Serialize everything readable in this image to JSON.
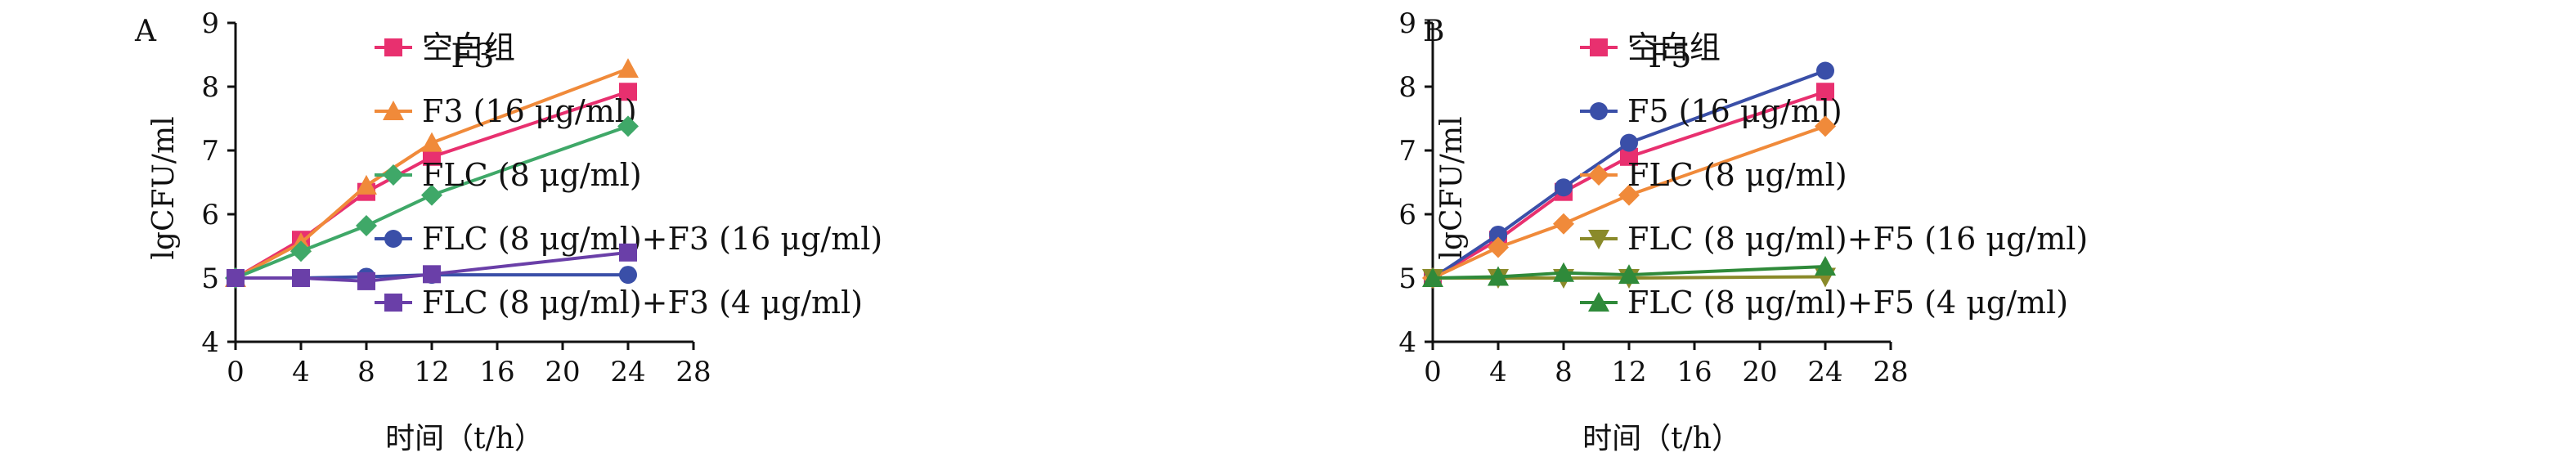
{
  "chart_data": [
    {
      "type": "line",
      "panel_label": "A",
      "title": "F3",
      "xlabel": "时间（t/h）",
      "ylabel": "lgCFU/ml",
      "xlim": [
        0,
        28
      ],
      "ylim": [
        4,
        9
      ],
      "xticks": [
        0,
        4,
        8,
        12,
        16,
        20,
        24,
        28
      ],
      "yticks": [
        4,
        5,
        6,
        7,
        8,
        9
      ],
      "grid": false,
      "legend_position": "right",
      "x": [
        0,
        4,
        8,
        12,
        24
      ],
      "series": [
        {
          "name": "空白组",
          "color": "#e8306f",
          "marker": "square",
          "values": [
            5.0,
            5.6,
            6.35,
            6.9,
            7.92
          ]
        },
        {
          "name": "F3 (16 μg/ml)",
          "color": "#f08a3a",
          "marker": "triangle-up",
          "values": [
            5.0,
            5.55,
            6.45,
            7.12,
            8.28
          ]
        },
        {
          "name": "FLC (8 μg/ml)",
          "color": "#3fa868",
          "marker": "diamond",
          "values": [
            5.0,
            5.42,
            5.82,
            6.3,
            7.38
          ]
        },
        {
          "name": "FLC (8 μg/ml)+F3 (16 μg/ml)",
          "color": "#3a4fa8",
          "marker": "circle",
          "values": [
            5.0,
            5.0,
            5.02,
            5.05,
            5.05
          ]
        },
        {
          "name": "FLC (8 μg/ml)+F3 (4 μg/ml)",
          "color": "#6a3fa8",
          "marker": "square",
          "values": [
            5.0,
            5.0,
            4.95,
            5.06,
            5.4
          ]
        }
      ]
    },
    {
      "type": "line",
      "panel_label": "B",
      "title": "F5",
      "xlabel": "时间（t/h）",
      "ylabel": "lgCFU/ml",
      "xlim": [
        0,
        28
      ],
      "ylim": [
        4,
        9
      ],
      "xticks": [
        0,
        4,
        8,
        12,
        16,
        20,
        24,
        28
      ],
      "yticks": [
        4,
        5,
        6,
        7,
        8,
        9
      ],
      "grid": false,
      "legend_position": "right",
      "x": [
        0,
        4,
        8,
        12,
        24
      ],
      "series": [
        {
          "name": "空白组",
          "color": "#e8306f",
          "marker": "square",
          "values": [
            5.0,
            5.6,
            6.35,
            6.9,
            7.92
          ]
        },
        {
          "name": "F5 (16 μg/ml)",
          "color": "#3a4fa8",
          "marker": "circle",
          "values": [
            5.0,
            5.68,
            6.42,
            7.12,
            8.25
          ]
        },
        {
          "name": "FLC (8 μg/ml)",
          "color": "#f08a3a",
          "marker": "diamond",
          "values": [
            5.0,
            5.48,
            5.85,
            6.3,
            7.38
          ]
        },
        {
          "name": "FLC (8 μg/ml)+F5 (16 μg/ml)",
          "color": "#8a8a2a",
          "marker": "triangle-down",
          "values": [
            5.0,
            5.0,
            5.0,
            5.0,
            5.02
          ]
        },
        {
          "name": "FLC (8 μg/ml)+F5 (4 μg/ml)",
          "color": "#2f8a3a",
          "marker": "triangle-up",
          "values": [
            5.0,
            5.02,
            5.08,
            5.05,
            5.18
          ]
        }
      ]
    }
  ]
}
